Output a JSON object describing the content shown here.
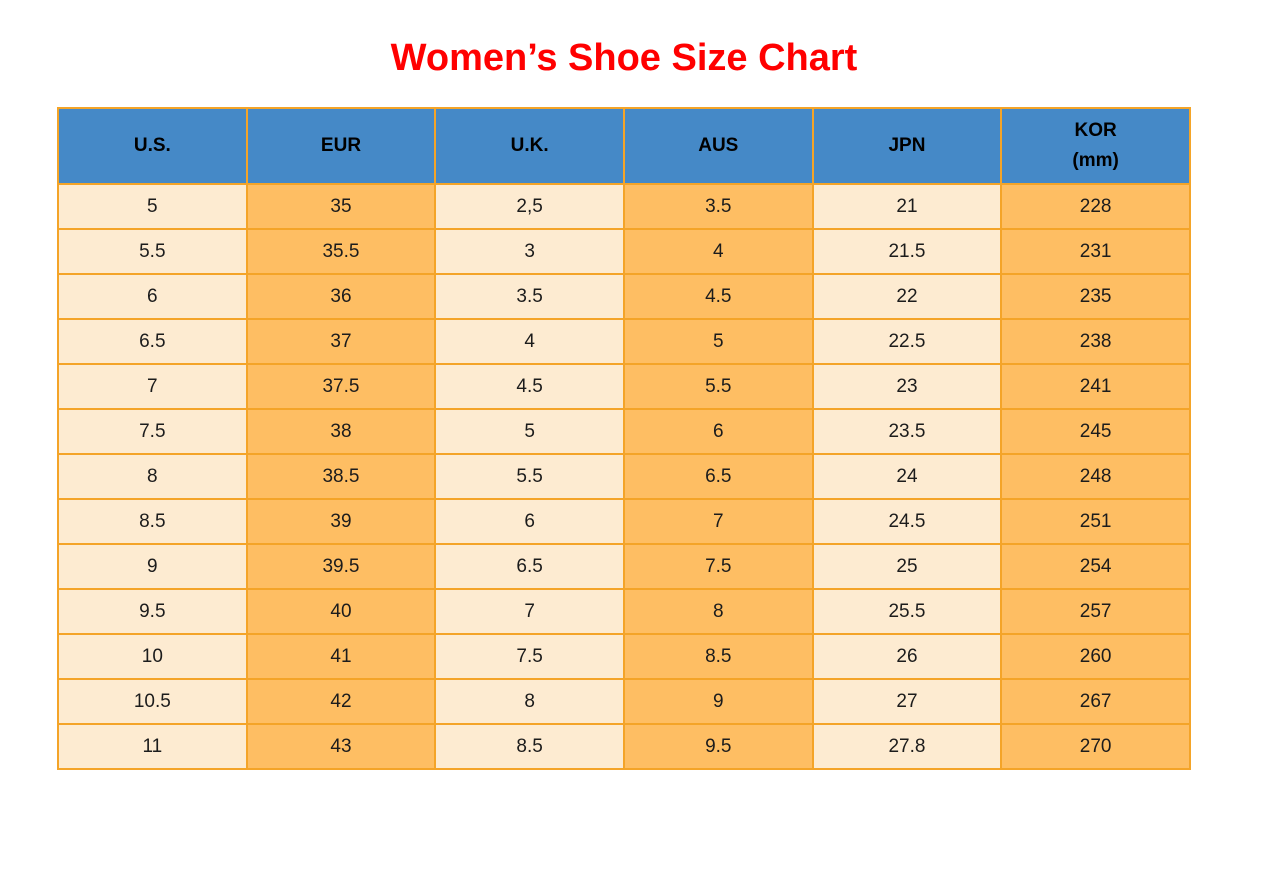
{
  "title": "Women’s Shoe Size Chart",
  "colors": {
    "title": "#ff0000",
    "header_bg": "#4589c7",
    "header_text": "#000000",
    "col_light": "#fdebd1",
    "col_dark": "#febe63",
    "border": "#f4a428",
    "cell_text": "#1c1c1c"
  },
  "chart_data": {
    "type": "table",
    "title": "Women’s Shoe Size Chart",
    "columns": [
      "U.S.",
      "EUR",
      "U.K.",
      "AUS",
      "JPN",
      "KOR (mm)"
    ],
    "header_display": [
      "U.S.",
      "EUR",
      "U.K.",
      "AUS",
      "JPN",
      "KOR\n(mm)"
    ],
    "rows": [
      [
        "5",
        "35",
        "2,5",
        "3.5",
        "21",
        "228"
      ],
      [
        "5.5",
        "35.5",
        "3",
        "4",
        "21.5",
        "231"
      ],
      [
        "6",
        "36",
        "3.5",
        "4.5",
        "22",
        "235"
      ],
      [
        "6.5",
        "37",
        "4",
        "5",
        "22.5",
        "238"
      ],
      [
        "7",
        "37.5",
        "4.5",
        "5.5",
        "23",
        "241"
      ],
      [
        "7.5",
        "38",
        "5",
        "6",
        "23.5",
        "245"
      ],
      [
        "8",
        "38.5",
        "5.5",
        "6.5",
        "24",
        "248"
      ],
      [
        "8.5",
        "39",
        "6",
        "7",
        "24.5",
        "251"
      ],
      [
        "9",
        "39.5",
        "6.5",
        "7.5",
        "25",
        "254"
      ],
      [
        "9.5",
        "40",
        "7",
        "8",
        "25.5",
        "257"
      ],
      [
        "10",
        "41",
        "7.5",
        "8.5",
        "26",
        "260"
      ],
      [
        "10.5",
        "42",
        "8",
        "9",
        "27",
        "267"
      ],
      [
        "11",
        "43",
        "8.5",
        "9.5",
        "27.8",
        "270"
      ]
    ]
  }
}
